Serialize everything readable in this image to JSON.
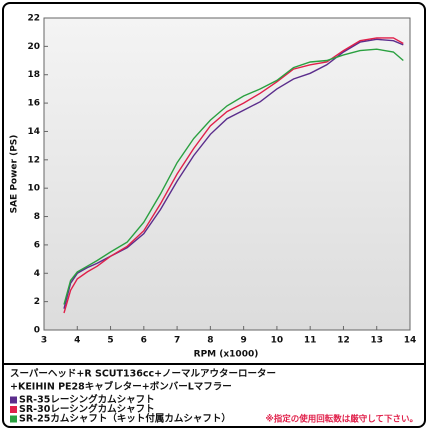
{
  "chart_data": {
    "type": "line",
    "xlabel": "RPM (x1000)",
    "ylabel": "SAE Power (PS)",
    "x": [
      3.6,
      3.8,
      4.0,
      4.3,
      4.6,
      5.0,
      5.5,
      6.0,
      6.5,
      7.0,
      7.5,
      8.0,
      8.5,
      9.0,
      9.5,
      10.0,
      10.5,
      11.0,
      11.5,
      12.0,
      12.5,
      13.0,
      13.5,
      13.8
    ],
    "series": [
      {
        "name": "SR-35レーシングカムシャフト",
        "color": "#5b2d8c",
        "values": [
          1.5,
          3.3,
          4.0,
          4.4,
          4.7,
          5.2,
          5.8,
          6.8,
          8.5,
          10.5,
          12.3,
          13.8,
          14.9,
          15.5,
          16.1,
          17.0,
          17.7,
          18.1,
          18.7,
          19.6,
          20.3,
          20.5,
          20.4,
          20.1
        ]
      },
      {
        "name": "SR-30レーシングカムシャフト",
        "color": "#e0204a",
        "values": [
          1.2,
          2.8,
          3.6,
          4.1,
          4.5,
          5.2,
          5.9,
          7.0,
          8.9,
          11.0,
          12.8,
          14.4,
          15.4,
          16.0,
          16.7,
          17.5,
          18.4,
          18.7,
          18.9,
          19.7,
          20.4,
          20.6,
          20.6,
          20.2
        ]
      },
      {
        "name": "SR-25カムシャフト（キット付属カムシャフト）",
        "color": "#2aa040",
        "values": [
          1.8,
          3.5,
          4.1,
          4.5,
          4.9,
          5.5,
          6.2,
          7.6,
          9.6,
          11.8,
          13.5,
          14.8,
          15.8,
          16.5,
          17.0,
          17.6,
          18.5,
          18.9,
          19.0,
          19.4,
          19.7,
          19.8,
          19.6,
          19.0
        ]
      }
    ],
    "xlim": [
      3,
      14
    ],
    "xticks": [
      3,
      4,
      5,
      6,
      7,
      8,
      9,
      10,
      11,
      12,
      13,
      14
    ],
    "ylim": [
      0,
      22
    ],
    "yticks": [
      0,
      2,
      4,
      6,
      8,
      10,
      12,
      14,
      16,
      18,
      20,
      22
    ],
    "grid": false,
    "caption": [
      "スーパーヘッド+R SCUT136cc+ノーマルアウターローター",
      "+KEIHIN PE28キャブレター+ボンバーLマフラー"
    ],
    "note": "※指定の使用回転数は厳守して下さい。"
  }
}
